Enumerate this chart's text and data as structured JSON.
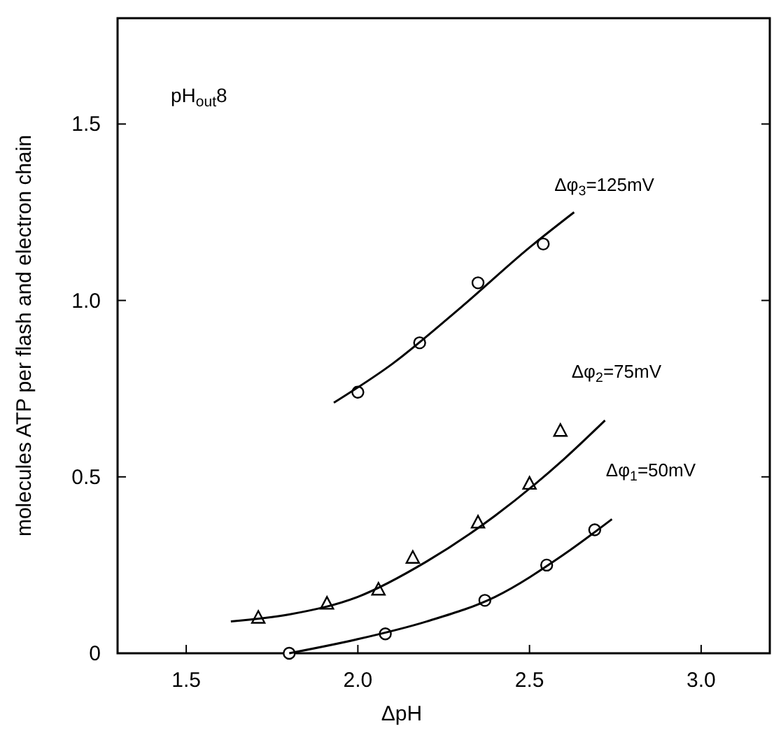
{
  "chart_data": {
    "type": "scatter",
    "xlabel": "ΔpH",
    "ylabel": "molecules ATP per flash and electron chain",
    "xlim": [
      1.3,
      3.2
    ],
    "ylim": [
      0,
      1.8
    ],
    "xticks": [
      1.5,
      {
        "value": 2.0,
        "label": "2.0"
      },
      2.5,
      {
        "value": 3.0,
        "label": "3.0"
      }
    ],
    "yticks": [
      0,
      0.5,
      {
        "value": 1.0,
        "label": "1.0"
      },
      1.5
    ],
    "grid": false,
    "annotations": [
      "pH$_{out}$8"
    ],
    "series": [
      {
        "name": "Δφ$_{3}$=125mV",
        "marker": "circle",
        "color": "#000000",
        "x": [
          2.0,
          2.18,
          2.35,
          2.54
        ],
        "values": [
          0.74,
          0.88,
          1.05,
          1.16
        ]
      },
      {
        "name": "Δφ$_{2}$=75mV",
        "marker": "triangle",
        "color": "#000000",
        "x": [
          1.71,
          1.91,
          2.06,
          2.16,
          2.35,
          2.5,
          2.59
        ],
        "values": [
          0.1,
          0.14,
          0.18,
          0.27,
          0.37,
          0.48,
          0.63
        ]
      },
      {
        "name": "Δφ$_{1}$=50mV",
        "marker": "circle",
        "color": "#000000",
        "x": [
          1.8,
          2.08,
          2.37,
          2.55,
          2.69
        ],
        "values": [
          0,
          0.055,
          0.15,
          0.25,
          0.35
        ]
      },
      {
        "type": "line",
        "marker": "none",
        "line_style": "solid",
        "color": "#000000",
        "x": [
          1.93,
          2.1,
          2.3,
          2.5,
          2.63
        ],
        "values": [
          0.71,
          0.82,
          0.98,
          1.15,
          1.25
        ]
      },
      {
        "type": "line",
        "marker": "none",
        "line_style": "solid",
        "color": "#000000",
        "x": [
          1.63,
          1.8,
          2.0,
          2.2,
          2.4,
          2.6,
          2.72
        ],
        "values": [
          0.09,
          0.11,
          0.16,
          0.26,
          0.39,
          0.55,
          0.66
        ]
      },
      {
        "type": "line",
        "marker": "none",
        "line_style": "solid",
        "color": "#000000",
        "x": [
          1.8,
          2.0,
          2.2,
          2.4,
          2.6,
          2.74
        ],
        "values": [
          0,
          0.04,
          0.09,
          0.16,
          0.28,
          0.38
        ]
      }
    ]
  }
}
